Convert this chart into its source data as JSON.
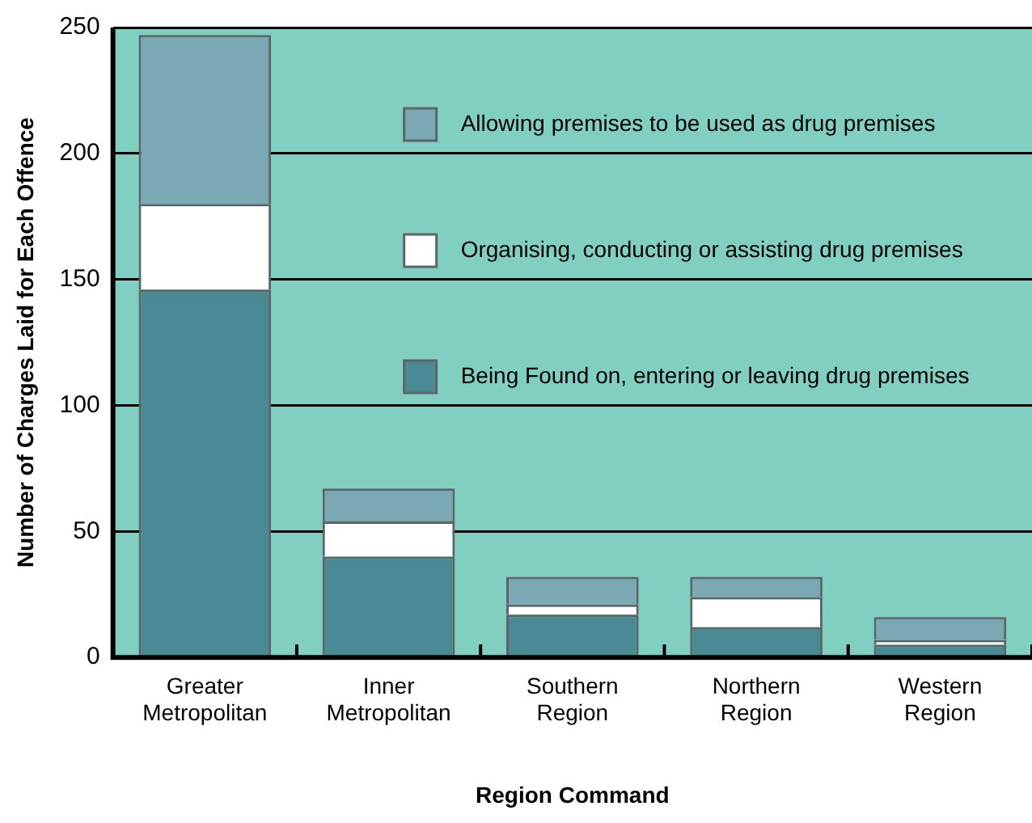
{
  "chart_data": {
    "type": "bar",
    "stacked": true,
    "xlabel": "Region Command",
    "ylabel": "Number of Charges Laid for Each Offence",
    "categories": [
      "Greater Metropolitan",
      "Inner Metropolitan",
      "Southern Region",
      "Northern Region",
      "Western Region"
    ],
    "series": [
      {
        "name": "Being Found on, entering or leaving drug premises",
        "color": "#4a8a94",
        "values": [
          146,
          40,
          17,
          12,
          5
        ]
      },
      {
        "name": "Organising, conducting or assisting drug premises",
        "color": "#ffffff",
        "values": [
          34,
          14,
          4,
          12,
          2
        ]
      },
      {
        "name": "Allowing premises to be used as drug premises",
        "color": "#7aa8b4",
        "values": [
          67,
          13,
          11,
          8,
          9
        ]
      }
    ],
    "ylim": [
      0,
      250
    ],
    "yticks": [
      0,
      50,
      100,
      150,
      200,
      250
    ],
    "grid": "y",
    "legend": "top right"
  }
}
